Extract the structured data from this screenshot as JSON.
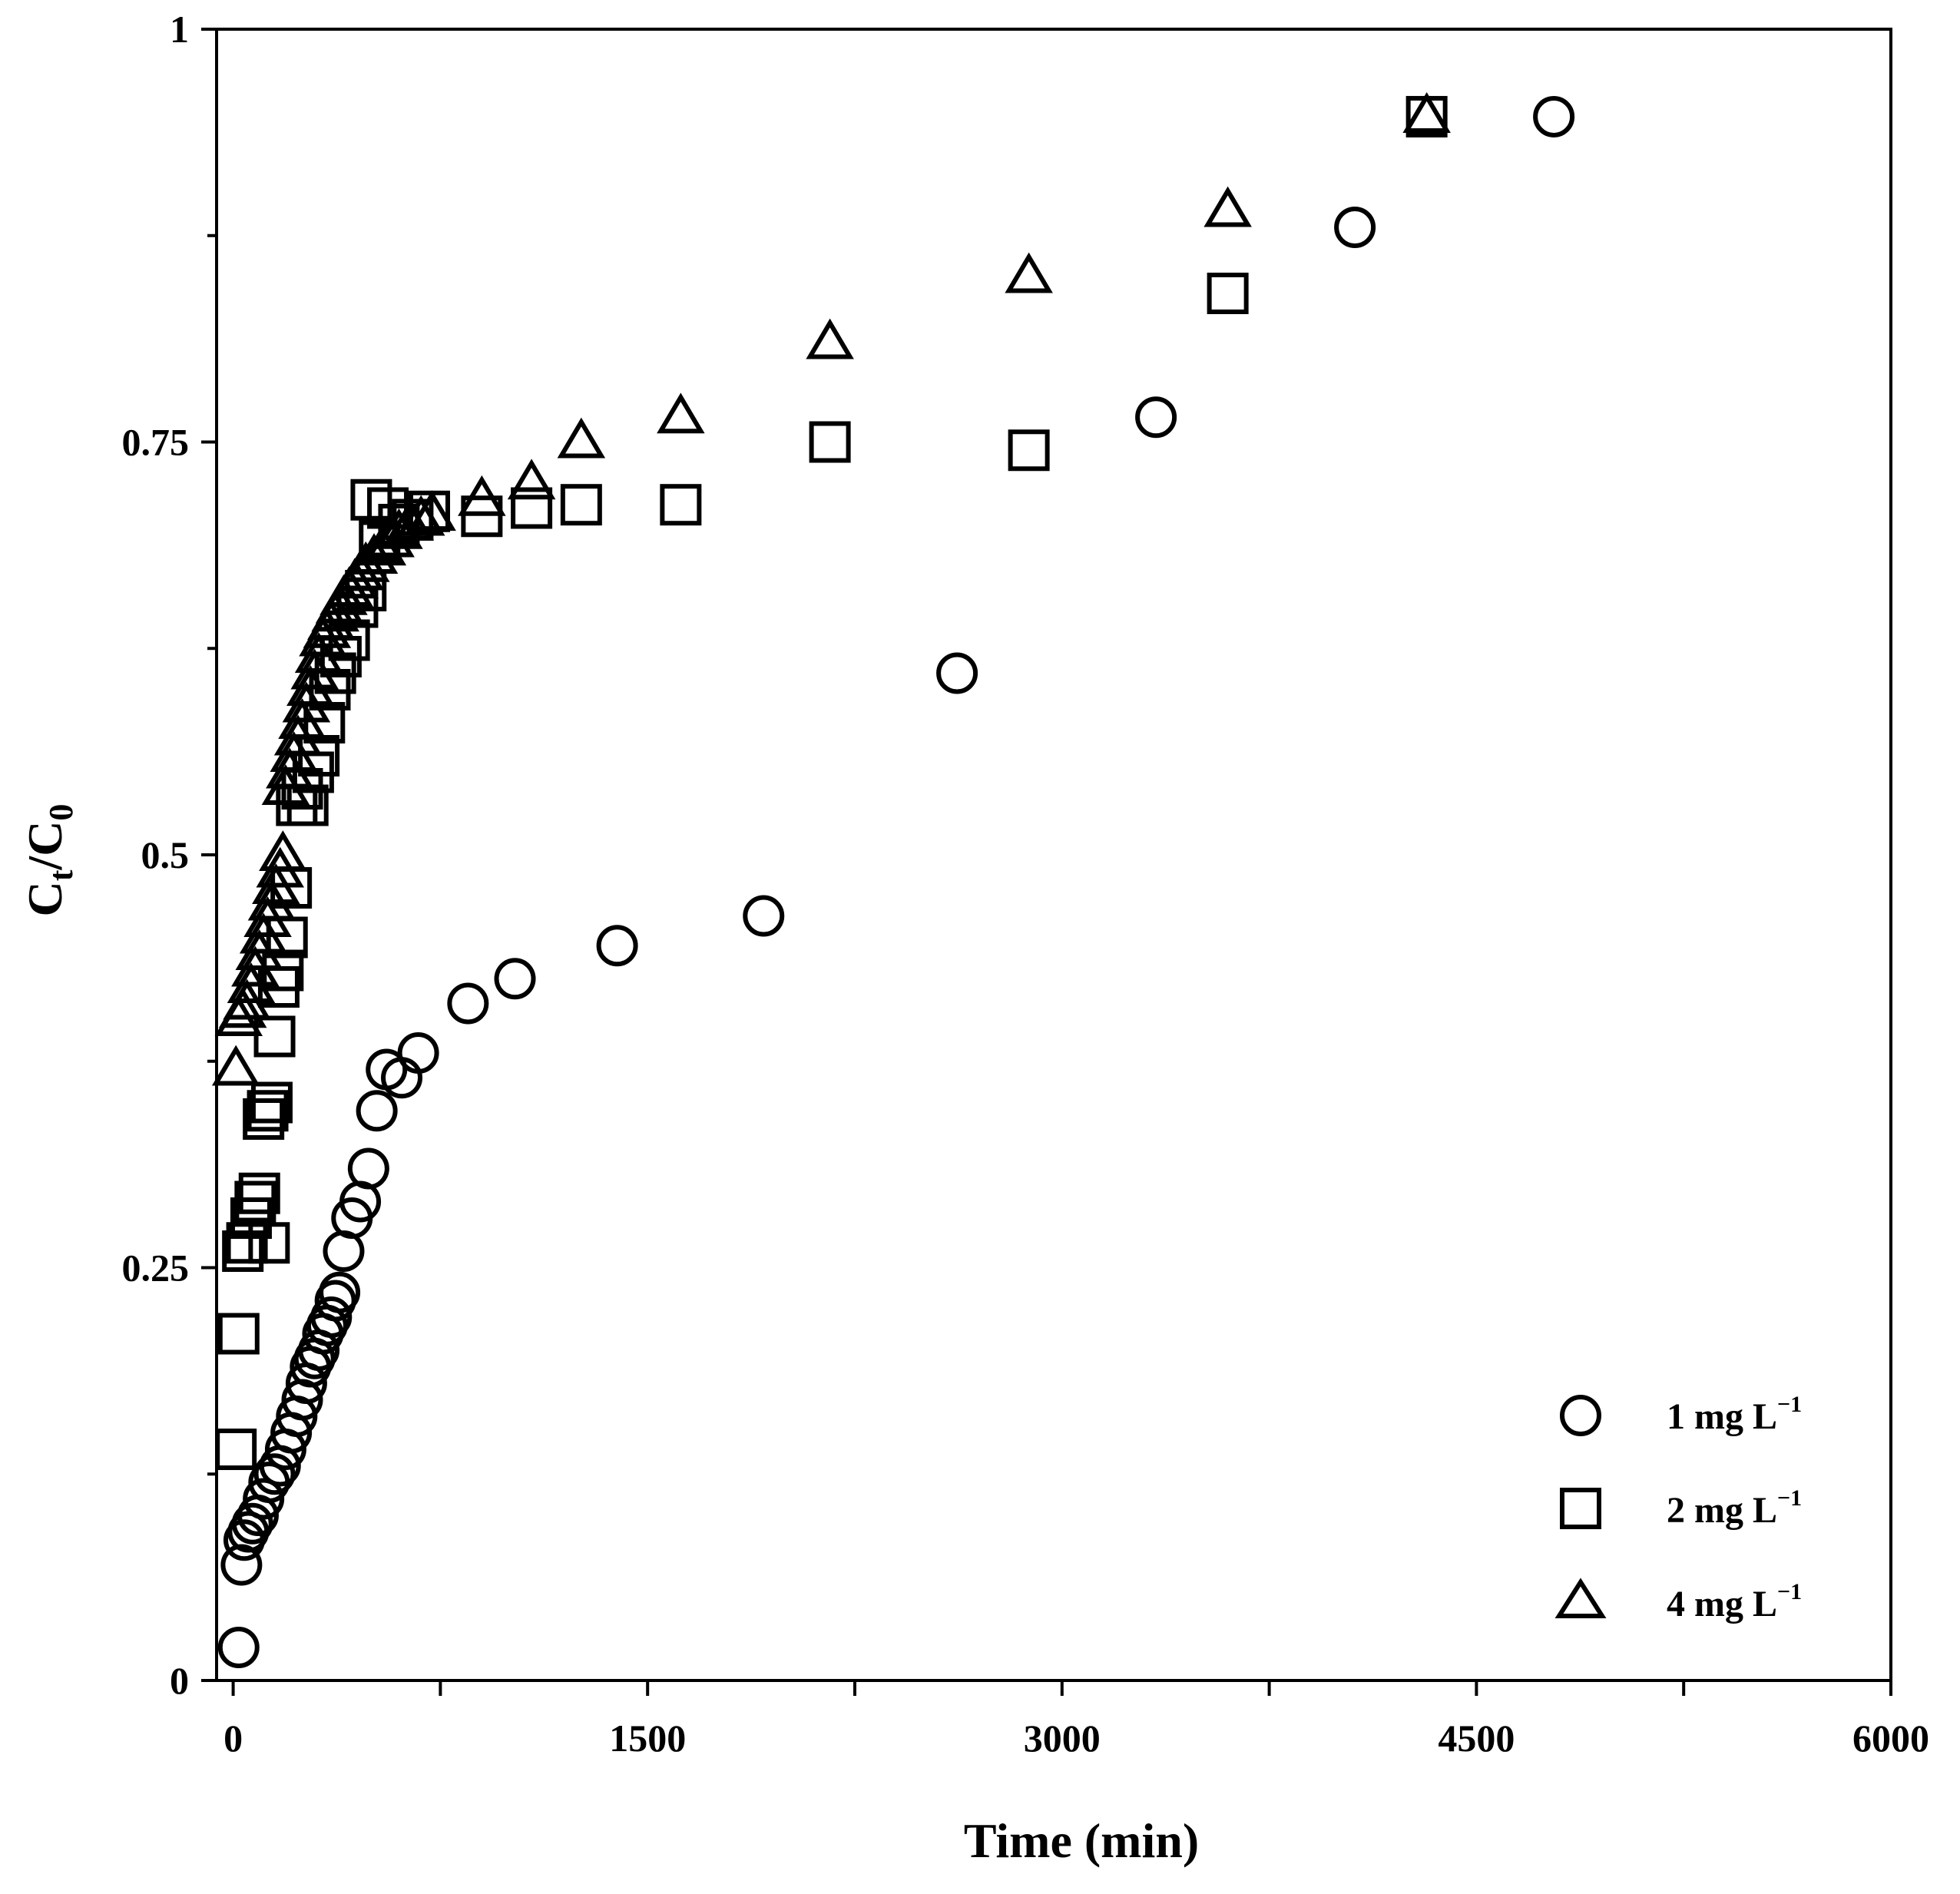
{
  "chart_data": {
    "type": "scatter",
    "title": "",
    "xlabel": "Time (min)",
    "ylabel": {
      "main": "C",
      "sub1": "t",
      "mid": "/C",
      "sub2": "0"
    },
    "xlim": [
      -60,
      6000
    ],
    "ylim": [
      0,
      1
    ],
    "xticks": [
      0,
      1500,
      3000,
      4500,
      6000
    ],
    "xtick_labels": [
      "0",
      "1500",
      "3000",
      "4500",
      "6000"
    ],
    "xminor_ticks": [
      750,
      2250,
      3750,
      5250
    ],
    "yticks": [
      0,
      0.25,
      0.5,
      0.75,
      1
    ],
    "ytick_labels": [
      "0",
      "0.25",
      "0.5",
      "0.75",
      "1"
    ],
    "yminor_ticks": [
      0.125,
      0.375,
      0.625,
      0.875
    ],
    "grid": false,
    "legend_position": "bottom-right",
    "series": [
      {
        "name": "1 mg L",
        "sup": "−1",
        "marker": "circle",
        "points": [
          [
            20,
            0.02
          ],
          [
            30,
            0.07
          ],
          [
            40,
            0.085
          ],
          [
            55,
            0.09
          ],
          [
            70,
            0.095
          ],
          [
            90,
            0.1
          ],
          [
            110,
            0.11
          ],
          [
            130,
            0.12
          ],
          [
            150,
            0.125
          ],
          [
            170,
            0.13
          ],
          [
            190,
            0.14
          ],
          [
            210,
            0.15
          ],
          [
            230,
            0.16
          ],
          [
            250,
            0.17
          ],
          [
            265,
            0.18
          ],
          [
            280,
            0.19
          ],
          [
            295,
            0.195
          ],
          [
            310,
            0.2
          ],
          [
            325,
            0.21
          ],
          [
            340,
            0.215
          ],
          [
            355,
            0.22
          ],
          [
            370,
            0.23
          ],
          [
            385,
            0.235
          ],
          [
            400,
            0.26
          ],
          [
            430,
            0.28
          ],
          [
            460,
            0.29
          ],
          [
            490,
            0.31
          ],
          [
            520,
            0.345
          ],
          [
            555,
            0.37
          ],
          [
            610,
            0.365
          ],
          [
            670,
            0.38
          ],
          [
            850,
            0.41
          ],
          [
            1020,
            0.425
          ],
          [
            1390,
            0.445
          ],
          [
            1920,
            0.463
          ],
          [
            2620,
            0.61
          ],
          [
            3340,
            0.765
          ],
          [
            4060,
            0.88
          ],
          [
            4780,
            0.947
          ]
        ]
      },
      {
        "name": "2 mg L",
        "sup": "−1",
        "marker": "square",
        "points": [
          [
            10,
            0.14
          ],
          [
            20,
            0.21
          ],
          [
            35,
            0.26
          ],
          [
            50,
            0.265
          ],
          [
            65,
            0.28
          ],
          [
            80,
            0.29
          ],
          [
            95,
            0.295
          ],
          [
            110,
            0.34
          ],
          [
            125,
            0.345
          ],
          [
            140,
            0.35
          ],
          [
            130,
            0.265
          ],
          [
            150,
            0.39
          ],
          [
            165,
            0.42
          ],
          [
            180,
            0.43
          ],
          [
            195,
            0.45
          ],
          [
            210,
            0.48
          ],
          [
            230,
            0.53
          ],
          [
            250,
            0.54
          ],
          [
            270,
            0.53
          ],
          [
            290,
            0.55
          ],
          [
            310,
            0.56
          ],
          [
            330,
            0.58
          ],
          [
            350,
            0.6
          ],
          [
            370,
            0.61
          ],
          [
            390,
            0.62
          ],
          [
            420,
            0.63
          ],
          [
            450,
            0.65
          ],
          [
            480,
            0.66
          ],
          [
            500,
            0.715
          ],
          [
            530,
            0.69
          ],
          [
            560,
            0.71
          ],
          [
            600,
            0.7
          ],
          [
            650,
            0.703
          ],
          [
            710,
            0.708
          ],
          [
            900,
            0.705
          ],
          [
            1080,
            0.71
          ],
          [
            1260,
            0.712
          ],
          [
            1620,
            0.712
          ],
          [
            2160,
            0.75
          ],
          [
            2880,
            0.745
          ],
          [
            3600,
            0.84
          ],
          [
            4320,
            0.947
          ]
        ]
      },
      {
        "name": "4 mg L",
        "sup": "−1",
        "marker": "triangle",
        "points": [
          [
            10,
            0.37
          ],
          [
            20,
            0.4
          ],
          [
            35,
            0.405
          ],
          [
            50,
            0.41
          ],
          [
            65,
            0.42
          ],
          [
            80,
            0.43
          ],
          [
            95,
            0.44
          ],
          [
            110,
            0.45
          ],
          [
            125,
            0.46
          ],
          [
            140,
            0.47
          ],
          [
            155,
            0.48
          ],
          [
            170,
            0.49
          ],
          [
            180,
            0.5
          ],
          [
            190,
            0.54
          ],
          [
            205,
            0.55
          ],
          [
            220,
            0.56
          ],
          [
            235,
            0.57
          ],
          [
            250,
            0.58
          ],
          [
            265,
            0.59
          ],
          [
            280,
            0.6
          ],
          [
            295,
            0.61
          ],
          [
            310,
            0.62
          ],
          [
            325,
            0.63
          ],
          [
            340,
            0.635
          ],
          [
            355,
            0.64
          ],
          [
            370,
            0.645
          ],
          [
            385,
            0.65
          ],
          [
            400,
            0.655
          ],
          [
            420,
            0.66
          ],
          [
            440,
            0.665
          ],
          [
            460,
            0.67
          ],
          [
            480,
            0.675
          ],
          [
            510,
            0.68
          ],
          [
            540,
            0.685
          ],
          [
            570,
            0.69
          ],
          [
            600,
            0.695
          ],
          [
            640,
            0.7
          ],
          [
            680,
            0.703
          ],
          [
            720,
            0.706
          ],
          [
            900,
            0.715
          ],
          [
            1080,
            0.725
          ],
          [
            1260,
            0.75
          ],
          [
            1620,
            0.765
          ],
          [
            2160,
            0.81
          ],
          [
            2880,
            0.85
          ],
          [
            3600,
            0.89
          ],
          [
            4320,
            0.947
          ]
        ]
      }
    ]
  }
}
